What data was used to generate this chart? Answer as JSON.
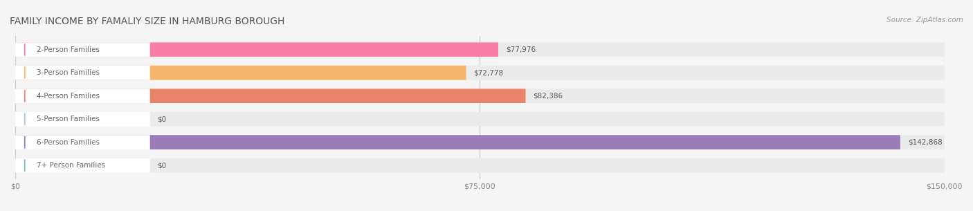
{
  "title": "FAMILY INCOME BY FAMALIY SIZE IN HAMBURG BOROUGH",
  "source": "Source: ZipAtlas.com",
  "categories": [
    "2-Person Families",
    "3-Person Families",
    "4-Person Families",
    "5-Person Families",
    "6-Person Families",
    "7+ Person Families"
  ],
  "values": [
    77976,
    72778,
    82386,
    0,
    142868,
    0
  ],
  "bar_colors": [
    "#F97FA8",
    "#F5B56A",
    "#E8846A",
    "#A8C4E8",
    "#9B7BB8",
    "#6EC4C4"
  ],
  "label_colors": [
    "#F97FA8",
    "#F5B56A",
    "#E8846A",
    "#A8C4E8",
    "#9B7BB8",
    "#6EC4C4"
  ],
  "value_labels": [
    "$77,976",
    "$72,778",
    "$82,386",
    "$0",
    "$142,868",
    "$0"
  ],
  "xmax": 150000,
  "xticks": [
    0,
    75000,
    150000
  ],
  "xtick_labels": [
    "$0",
    "$75,000",
    "$150,000"
  ],
  "background_color": "#f5f5f5",
  "bar_bg_color": "#ebebeb",
  "title_color": "#555555",
  "label_text_color": "#666666",
  "value_text_color": "#555555"
}
